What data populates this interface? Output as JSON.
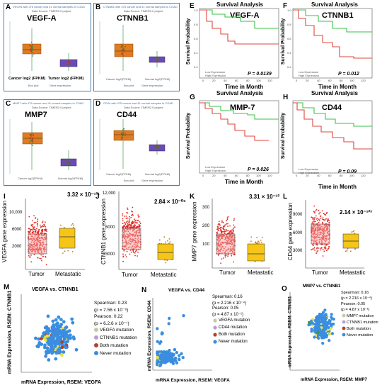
{
  "panels": {
    "A": {
      "letter": "A",
      "gene": "VEGF-A",
      "header": "VEGFA with 475 cancer and 41 normal samples in COAD",
      "source": "Data Source: TIMER2.0 project",
      "x1": "Cancer log2 (FPKM)",
      "x2": "Tumor log2 (FPKM)",
      "leg1": "Box plot",
      "leg2": "Gene expression"
    },
    "B": {
      "letter": "B",
      "gene": "CTNNB1",
      "header": "CTNNB1 with 475 cancer and 41 normal samples in COAD",
      "source": "Data Source: TIMER2.0 project",
      "x1": "Cancer log2(FPKM)",
      "x2": "Normal log2(FPKM)",
      "leg1": "Box plot",
      "leg2": "Gene expression"
    },
    "C": {
      "letter": "C",
      "gene": "MMP7",
      "header": "MMP7 with 475 cancer and 41 normal samples in COAD",
      "source": "Data Source: TIMER2.0 project",
      "x1": "Cancer log2(FPKM)",
      "x2": "Normal log2(FPKM)",
      "leg1": "Box plot",
      "leg2": "Gene expression"
    },
    "D": {
      "letter": "D",
      "gene": "CD44",
      "header": "CD44 with 475 cancer and 41 normal samples in COAD",
      "source": "Data Source: TIMER2.0 project",
      "x1": "Cancer log2(FPKM)",
      "x2": "Normal log2(FPKM)",
      "leg1": "Box plot",
      "leg2": "Gene expression"
    }
  },
  "survival": {
    "E": {
      "letter": "E",
      "title": "Survival Analysis",
      "gene": "VEGF-A",
      "p": "P = 0.0139",
      "ylabel": "Survival Probability",
      "xlabel": "Time in Month",
      "low": "Low Expression",
      "high": "High Expression"
    },
    "F": {
      "letter": "F",
      "title": "Survival Analysis",
      "gene": "CTNNB1",
      "p": "P = 0.012",
      "ylabel": "Survival Probability",
      "xlabel": "Time in Month",
      "low": "Low Expression",
      "high": "High Expression"
    },
    "G": {
      "letter": "G",
      "title": "Survival Analysis",
      "gene": "MMP-7",
      "p": "P = 0.026",
      "ylabel": "Survival Probability",
      "xlabel": "Time in Month",
      "low": "Low Expression",
      "high": "High Expression"
    },
    "H": {
      "letter": "H",
      "title": "Survival Analysis",
      "gene": "CD44",
      "p": "P = 0.09",
      "ylabel": "Survival Probability",
      "xlabel": "Time in Month",
      "low": "Low Expression",
      "high": "High Expression"
    }
  },
  "boxplots": {
    "I": {
      "letter": "I",
      "ylabel": "VEGFA gene expression",
      "p": "3.32 × 10⁻¹²¹",
      "ticks": [
        "10,000",
        "6000",
        "2000"
      ],
      "g1": "Tumor",
      "g2": "Metastatic"
    },
    "J": {
      "letter": "J",
      "ylabel": "CTNNB1 gene expression",
      "p": "2.84 × 10⁻⁰⁵",
      "ticks": [
        "12,000",
        "6000",
        "3000"
      ],
      "g1": "Tumor",
      "g2": "Metastatic"
    },
    "K": {
      "letter": "K",
      "ylabel": "MMP7 gene expression",
      "p": "3.31 × 10⁻³²",
      "ticks": [
        "300",
        "200",
        "100"
      ],
      "g1": "Tumor",
      "g2": "Metastatic"
    },
    "L": {
      "letter": "L",
      "ylabel": "CD44 gene expression",
      "p": "2.14 × 10⁻¹²³",
      "ticks": [
        "9000",
        "6000",
        "3000"
      ],
      "g1": "Tumor",
      "g2": "Metastatic"
    }
  },
  "scatter": {
    "M": {
      "letter": "M",
      "title": "VEGFA vs. CTNNB1",
      "ylabel": "mRNA Expression, RSEM: CTNNB1",
      "xlabel": "mRNA Expression, RSEM: VEGFA",
      "s1": "Spearman: 0.23",
      "s2": "(p = 7.56 x 10⁻⁸)",
      "p1": "Pearson: 0.22",
      "p2": "(p = 6.2.6 x 10⁻⁷)",
      "l1": "VEGFA mutation",
      "l2": "CTNNB1 mutation",
      "l3": "Both mutation",
      "l4": "Never mutation"
    },
    "N": {
      "letter": "N",
      "title": "VEGFA vs. CD44",
      "ylabel": "mRNA Expression, RSEM: CD44",
      "xlabel": "mRNA Expression, RSEM: VEGFA",
      "s1": "Spearman: 0.16",
      "s2": "(p = 2.216 x 10⁻⁴)",
      "p1": "Pearson: 0.05",
      "p2": "(p = 4.87 x 10⁻¹)",
      "l1": "VEGFA mutation",
      "l2": "CD44 mutation",
      "l3": "Both mutation",
      "l4": "Never mutation"
    },
    "O": {
      "letter": "O",
      "title": "MMP7 vs. CTNNB1",
      "ylabel": "mRNA Expression, RSEM: CTNNB1",
      "xlabel": "mRNA Expression, RSEM: MMP7",
      "s1": "Spearman: 0.16",
      "s2": "(p = 2.216 x 10⁻⁴)",
      "p1": "Pearson: 0.05",
      "p2": "(p = 4.87 x 10⁻¹)",
      "l1": "MMP7 mutation",
      "l2": "CTNNB1 mutation",
      "l3": "Both mutation",
      "l4": "Never mutation"
    }
  },
  "colors": {
    "tumor_orange": "#e07b1f",
    "normal_purple": "#6a4bb5",
    "panel_border": "#4a7fb5",
    "red": "#e6261f",
    "yellow": "#f5c518",
    "km_low": "#39c24a",
    "km_high": "#e0443c",
    "scatter_blue": "#3b8de0",
    "scatter_yellow": "#e8e23a"
  }
}
